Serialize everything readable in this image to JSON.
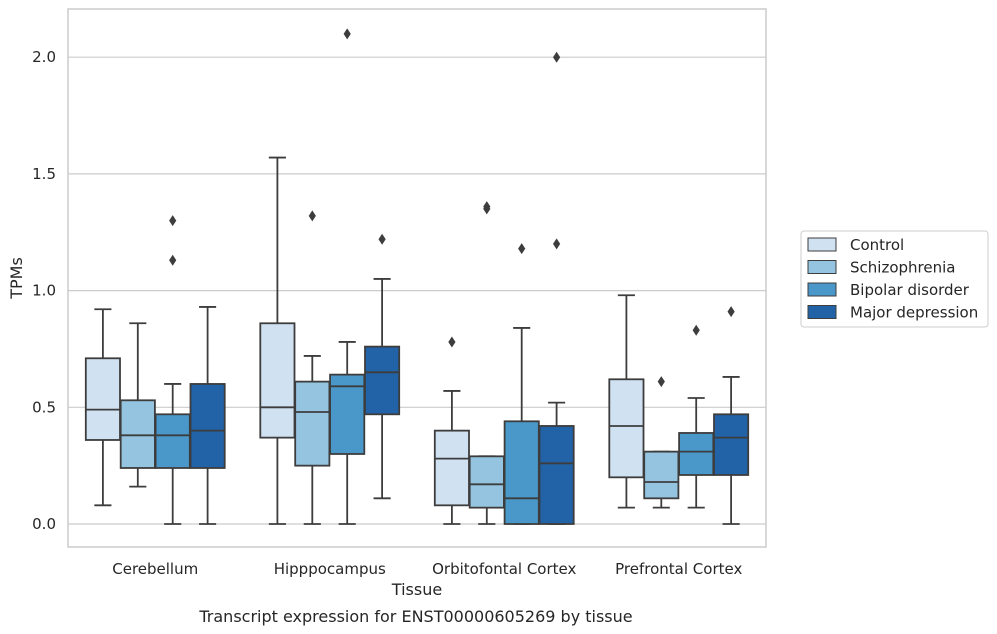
{
  "chart_data": {
    "type": "boxplot",
    "title": "",
    "caption": "Transcript expression for ENST00000605269 by tissue",
    "xlabel": "Tissue",
    "ylabel": "TPMs",
    "ylim": [
      -0.1,
      2.22
    ],
    "yticks": [
      0.0,
      0.5,
      1.0,
      1.5,
      2.0
    ],
    "ytick_labels": [
      "0.0",
      "0.5",
      "1.0",
      "1.5",
      "2.0"
    ],
    "grid": "horizontal",
    "legend_position": "right",
    "categories": [
      "Cerebellum",
      "Hipppocampus",
      "Orbitofontal Cortex",
      "Prefrontal Cortex"
    ],
    "series": [
      {
        "name": "Control",
        "color": "#d0e1f2",
        "boxes": [
          {
            "whislo": 0.08,
            "q1": 0.36,
            "med": 0.49,
            "q3": 0.71,
            "whishi": 0.92,
            "fliers": []
          },
          {
            "whislo": 0.0,
            "q1": 0.37,
            "med": 0.5,
            "q3": 0.86,
            "whishi": 1.57,
            "fliers": []
          },
          {
            "whislo": 0.0,
            "q1": 0.08,
            "med": 0.28,
            "q3": 0.4,
            "whishi": 0.57,
            "fliers": [
              0.78
            ]
          },
          {
            "whislo": 0.07,
            "q1": 0.2,
            "med": 0.42,
            "q3": 0.62,
            "whishi": 0.98,
            "fliers": []
          }
        ]
      },
      {
        "name": "Schizophrenia",
        "color": "#94c4df",
        "boxes": [
          {
            "whislo": 0.16,
            "q1": 0.24,
            "med": 0.38,
            "q3": 0.53,
            "whishi": 0.86,
            "fliers": []
          },
          {
            "whislo": 0.0,
            "q1": 0.25,
            "med": 0.48,
            "q3": 0.61,
            "whishi": 0.72,
            "fliers": [
              1.32
            ]
          },
          {
            "whislo": 0.0,
            "q1": 0.07,
            "med": 0.17,
            "q3": 0.29,
            "whishi": 0.29,
            "fliers": [
              1.35,
              1.36
            ]
          },
          {
            "whislo": 0.07,
            "q1": 0.11,
            "med": 0.18,
            "q3": 0.31,
            "whishi": 0.31,
            "fliers": [
              0.61
            ]
          }
        ]
      },
      {
        "name": "Bipolar disorder",
        "color": "#4a98c9",
        "boxes": [
          {
            "whislo": 0.0,
            "q1": 0.24,
            "med": 0.38,
            "q3": 0.47,
            "whishi": 0.6,
            "fliers": [
              1.13,
              1.3
            ]
          },
          {
            "whislo": 0.0,
            "q1": 0.3,
            "med": 0.59,
            "q3": 0.64,
            "whishi": 0.78,
            "fliers": [
              2.1
            ]
          },
          {
            "whislo": 0.0,
            "q1": 0.0,
            "med": 0.11,
            "q3": 0.44,
            "whishi": 0.84,
            "fliers": [
              1.18
            ]
          },
          {
            "whislo": 0.07,
            "q1": 0.21,
            "med": 0.31,
            "q3": 0.39,
            "whishi": 0.54,
            "fliers": [
              0.83
            ]
          }
        ]
      },
      {
        "name": "Major depression",
        "color": "#2262a6",
        "boxes": [
          {
            "whislo": 0.0,
            "q1": 0.24,
            "med": 0.4,
            "q3": 0.6,
            "whishi": 0.93,
            "fliers": []
          },
          {
            "whislo": 0.11,
            "q1": 0.47,
            "med": 0.65,
            "q3": 0.76,
            "whishi": 1.05,
            "fliers": [
              1.22
            ]
          },
          {
            "whislo": 0.0,
            "q1": 0.0,
            "med": 0.26,
            "q3": 0.42,
            "whishi": 0.52,
            "fliers": [
              1.2,
              2.0
            ]
          },
          {
            "whislo": 0.0,
            "q1": 0.21,
            "med": 0.37,
            "q3": 0.47,
            "whishi": 0.63,
            "fliers": [
              0.91
            ]
          }
        ]
      }
    ]
  }
}
